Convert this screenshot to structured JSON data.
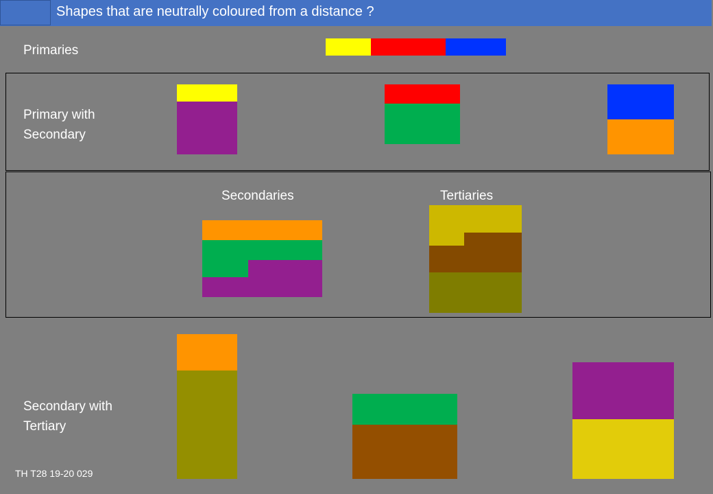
{
  "title": "Shapes that are neutrally coloured from a distance ?",
  "labels": {
    "primaries": "Primaries",
    "primary_with_secondary": "Primary with\nSecondary",
    "secondaries": "Secondaries",
    "tertiaries": "Tertiaries",
    "secondary_with_tertiary": "Secondary with\nTertiary"
  },
  "footer": "TH T28 19-20 029",
  "colors": {
    "background": "#7f7f7f",
    "title_bar": "#4472c4",
    "yellow": "#ffff00",
    "red": "#ff0000",
    "blue": "#0033ff",
    "purple": "#931f8f",
    "green": "#00ae4f",
    "orange": "#ff9400",
    "mustard": "#cdb800",
    "brown": "#844a00",
    "olive": "#7f7d00",
    "olive_light": "#948f00",
    "brown_light": "#944f00",
    "yellow_dark": "#e2cc0a"
  }
}
